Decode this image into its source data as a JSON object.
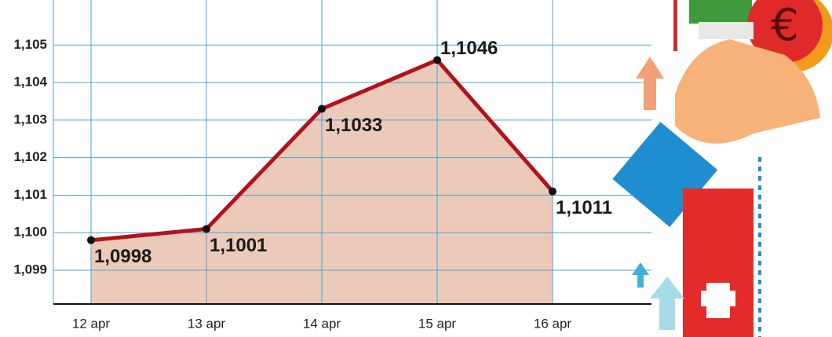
{
  "chart_data": {
    "type": "area",
    "categories": [
      "12 apr",
      "13 apr",
      "14 apr",
      "15 apr",
      "16 apr"
    ],
    "values": [
      1.0998,
      1.1001,
      1.1033,
      1.1046,
      1.1011
    ],
    "value_labels": [
      "1,0998",
      "1,1001",
      "1,1033",
      "1,1046",
      "1,1011"
    ],
    "color": "#b3121c",
    "fill": "#eccab9",
    "ylim": [
      1.0981,
      1.1062
    ],
    "yticks": [
      {
        "value": 1.099,
        "label": "1,099"
      },
      {
        "value": 1.1,
        "label": "1,100"
      },
      {
        "value": 1.101,
        "label": "1,101"
      },
      {
        "value": 1.102,
        "label": "1,102"
      },
      {
        "value": 1.103,
        "label": "1,103"
      },
      {
        "value": 1.104,
        "label": "1,104"
      },
      {
        "value": 1.105,
        "label": "1,105"
      }
    ],
    "grid": true
  }
}
